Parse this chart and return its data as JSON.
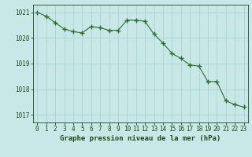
{
  "hours": [
    0,
    1,
    2,
    3,
    4,
    5,
    6,
    7,
    8,
    9,
    10,
    11,
    12,
    13,
    14,
    15,
    16,
    17,
    18,
    19,
    20,
    21,
    22,
    23
  ],
  "pressure": [
    1021.0,
    1020.85,
    1020.6,
    1020.35,
    1020.25,
    1020.2,
    1020.45,
    1020.4,
    1020.3,
    1020.3,
    1020.7,
    1020.7,
    1020.65,
    1020.15,
    1019.8,
    1019.4,
    1019.2,
    1018.95,
    1018.9,
    1018.3,
    1018.3,
    1017.55,
    1017.4,
    1017.3
  ],
  "line_color": "#2d6e2d",
  "marker": "+",
  "bg_color": "#c8e8e8",
  "grid_color": "#aad4d4",
  "yticks": [
    1017,
    1018,
    1019,
    1020,
    1021
  ],
  "xtick_labels": [
    "0",
    "1",
    "2",
    "3",
    "4",
    "5",
    "6",
    "7",
    "8",
    "9",
    "10",
    "11",
    "12",
    "13",
    "14",
    "15",
    "16",
    "17",
    "18",
    "19",
    "20",
    "21",
    "22",
    "23"
  ],
  "xlabel_text": "Graphe pression niveau de la mer (hPa)",
  "ylim": [
    1016.7,
    1021.3
  ],
  "xlim": [
    -0.5,
    23.5
  ],
  "title_color": "#1a4a1a",
  "label_fontsize": 6.5,
  "tick_fontsize": 5.5
}
